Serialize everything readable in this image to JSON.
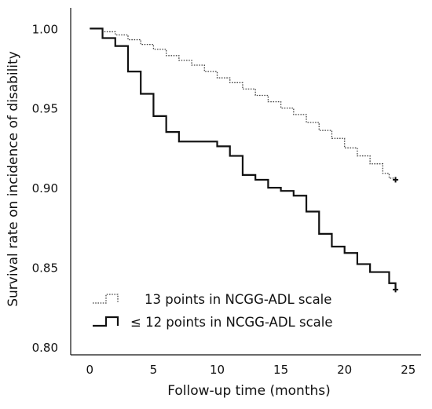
{
  "chart_data": {
    "type": "line",
    "xlabel": "Follow-up time (months)",
    "ylabel": "Survival rate on incidence of disability",
    "xlim": [
      -1.5,
      26
    ],
    "ylim": [
      0.795,
      1.013
    ],
    "x_ticks": [
      0,
      5,
      10,
      15,
      20,
      25
    ],
    "y_ticks": [
      0.8,
      0.85,
      0.9,
      0.95,
      1.0
    ],
    "y_tick_labels": [
      "0.80",
      "0.85",
      "0.90",
      "0.95",
      "1.00"
    ],
    "legend_position": "bottom-left",
    "grid": false,
    "series": [
      {
        "name": "13 points in NCGG-ADL scale",
        "style": "dotted",
        "color": "#444444",
        "censor_marker": {
          "x": 24,
          "y": 0.905
        },
        "steps": [
          [
            0,
            1.0
          ],
          [
            1,
            0.998
          ],
          [
            2,
            0.996
          ],
          [
            3,
            0.993
          ],
          [
            4,
            0.99
          ],
          [
            5,
            0.987
          ],
          [
            6,
            0.983
          ],
          [
            7,
            0.98
          ],
          [
            8,
            0.977
          ],
          [
            9,
            0.973
          ],
          [
            10,
            0.969
          ],
          [
            11,
            0.966
          ],
          [
            12,
            0.962
          ],
          [
            13,
            0.958
          ],
          [
            14,
            0.954
          ],
          [
            15,
            0.95
          ],
          [
            16,
            0.946
          ],
          [
            17,
            0.941
          ],
          [
            18,
            0.936
          ],
          [
            19,
            0.931
          ],
          [
            20,
            0.925
          ],
          [
            21,
            0.92
          ],
          [
            22,
            0.915
          ],
          [
            23,
            0.909
          ],
          [
            23.5,
            0.906
          ],
          [
            24,
            0.906
          ]
        ]
      },
      {
        "name": "≤ 12 points in NCGG-ADL scale",
        "style": "solid",
        "color": "#111111",
        "censor_marker": {
          "x": 24,
          "y": 0.836
        },
        "steps": [
          [
            0,
            1.0
          ],
          [
            1,
            0.994
          ],
          [
            2,
            0.989
          ],
          [
            3,
            0.973
          ],
          [
            4,
            0.959
          ],
          [
            5,
            0.945
          ],
          [
            6,
            0.935
          ],
          [
            7,
            0.929
          ],
          [
            10,
            0.926
          ],
          [
            11,
            0.92
          ],
          [
            12,
            0.908
          ],
          [
            13,
            0.905
          ],
          [
            14,
            0.9
          ],
          [
            15,
            0.898
          ],
          [
            16,
            0.895
          ],
          [
            17,
            0.885
          ],
          [
            18,
            0.871
          ],
          [
            19,
            0.863
          ],
          [
            20,
            0.859
          ],
          [
            21,
            0.852
          ],
          [
            22,
            0.847
          ],
          [
            23.5,
            0.84
          ],
          [
            24,
            0.836
          ]
        ]
      }
    ]
  }
}
